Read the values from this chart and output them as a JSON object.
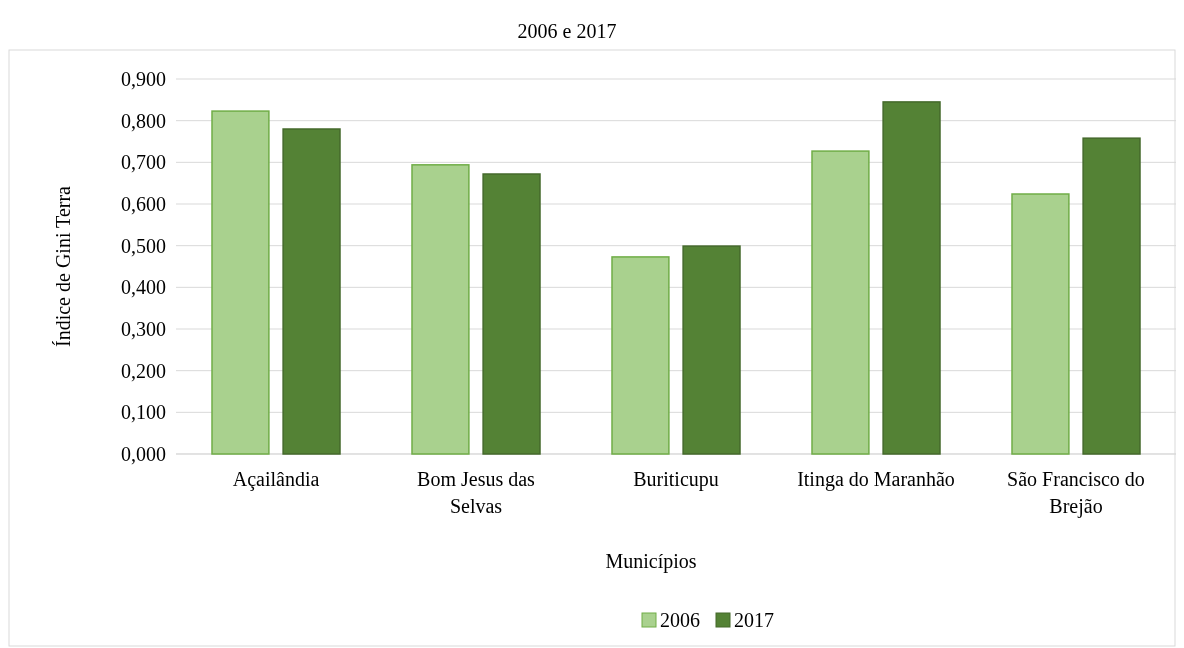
{
  "chart_data": {
    "type": "bar",
    "title": "2006 e 2017",
    "xlabel": "Municípios",
    "ylabel": "Índice de Gini Terra",
    "categories": [
      "Açailândia",
      "Bom Jesus das Selvas",
      "Buriticupu",
      "Itinga do Maranhão",
      "São Francisco do Brejão"
    ],
    "series": [
      {
        "name": "2006",
        "color": "#a9d18e",
        "values": [
          0.823,
          0.694,
          0.473,
          0.727,
          0.624
        ]
      },
      {
        "name": "2017",
        "color": "#548235",
        "values": [
          0.78,
          0.672,
          0.499,
          0.845,
          0.758
        ]
      }
    ],
    "ylim": [
      0,
      0.9
    ],
    "yticks": [
      {
        "value": 0,
        "label": "0,000"
      },
      {
        "value": 0.1,
        "label": "0,100"
      },
      {
        "value": 0.2,
        "label": "0,200"
      },
      {
        "value": 0.3,
        "label": "0,300"
      },
      {
        "value": 0.4,
        "label": "0,400"
      },
      {
        "value": 0.5,
        "label": "0,500"
      },
      {
        "value": 0.6,
        "label": "0,600"
      },
      {
        "value": 0.7,
        "label": "0,700"
      },
      {
        "value": 0.8,
        "label": "0,800"
      },
      {
        "value": 0.9,
        "label": "0,900"
      }
    ],
    "grid": "y",
    "legend": "bottom"
  }
}
